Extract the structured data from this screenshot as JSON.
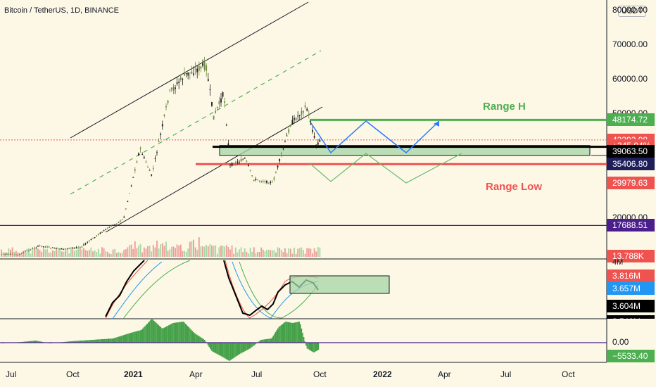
{
  "header": {
    "title": "Bitcoin / TetherUS, 1D, BINANCE",
    "currency": "USDT"
  },
  "price_axis": {
    "ticks": [
      {
        "label": "80000.00",
        "value": 80000
      },
      {
        "label": "70000.00",
        "value": 70000
      },
      {
        "label": "60000.00",
        "value": 60000
      },
      {
        "label": "50000.00",
        "value": 50000
      },
      {
        "label": "20000.00",
        "value": 20000
      }
    ]
  },
  "price_tags": [
    {
      "label": "48174.72",
      "value": 48174.72,
      "color": "#4caf50",
      "text_color": "#ffffff"
    },
    {
      "label": "42392.98",
      "value": 42392.98,
      "color": "#ef5350",
      "text_color": "#ffffff"
    },
    {
      "label": "+345.04%",
      "value": 40800,
      "color": "#ef5350",
      "text_color": "#ffffff"
    },
    {
      "label": "39063.50",
      "value": 39063.5,
      "color": "#000000",
      "text_color": "#ffffff"
    },
    {
      "label": "35406.80",
      "value": 35406.8,
      "color": "#1e1e5a",
      "text_color": "#ffffff"
    },
    {
      "label": "29979.63",
      "value": 29979.63,
      "color": "#ef5350",
      "text_color": "#ffffff"
    },
    {
      "label": "17688.51",
      "value": 17688.51,
      "color": "#4a1e8c",
      "text_color": "#ffffff"
    }
  ],
  "volume": {
    "label": "13.788K",
    "color": "#ef5350"
  },
  "indicator_axis": {
    "tick": "4M",
    "tags": [
      {
        "label": "3.816M",
        "color": "#ef5350",
        "text_color": "#ffffff"
      },
      {
        "label": "3.657M",
        "color": "#2196f3",
        "text_color": "#ffffff"
      },
      {
        "label": "3.604M",
        "color": "#000000",
        "text_color": "#ffffff"
      },
      {
        "label": "3.543M",
        "color": "#000000",
        "text_color": "#ffffff"
      }
    ]
  },
  "oscillator_axis": {
    "tick": "0.00",
    "tag": {
      "label": "−5533.40",
      "color": "#4caf50",
      "text_color": "#ffffff"
    }
  },
  "annotations": {
    "range_high": {
      "text": "Range H",
      "color": "#4caf50"
    },
    "range_low": {
      "text": "Range Low",
      "color": "#ef5350"
    }
  },
  "time_axis": [
    {
      "label": "Jul",
      "bold": false
    },
    {
      "label": "Oct",
      "bold": false
    },
    {
      "label": "2021",
      "bold": true
    },
    {
      "label": "Apr",
      "bold": false
    },
    {
      "label": "Jul",
      "bold": false
    },
    {
      "label": "Oct",
      "bold": false
    },
    {
      "label": "2022",
      "bold": true
    },
    {
      "label": "Apr",
      "bold": false
    },
    {
      "label": "Jul",
      "bold": false
    },
    {
      "label": "Oct",
      "bold": false
    }
  ],
  "chart_data": {
    "type": "candlestick",
    "symbol": "BTCUSDT",
    "interval": "1D",
    "ylim": [
      10000,
      80000
    ],
    "levels": {
      "range_high": 48174.72,
      "range_mid_top": 40800,
      "range_mid_bottom": 37900,
      "black_line": 40400,
      "range_low": 35406.8,
      "lower_support": 17688.51,
      "last_price": 42392.98
    },
    "series": [
      {
        "name": "BTCUSDT",
        "points": [
          [
            "2020-06-15",
            9500
          ],
          [
            "2020-07-15",
            9200
          ],
          [
            "2020-08-15",
            11800
          ],
          [
            "2020-09-15",
            10800
          ],
          [
            "2020-10-15",
            11500
          ],
          [
            "2020-11-15",
            16000
          ],
          [
            "2020-12-15",
            19500
          ],
          [
            "2021-01-08",
            40000
          ],
          [
            "2021-01-25",
            32000
          ],
          [
            "2021-02-20",
            56000
          ],
          [
            "2021-03-14",
            61000
          ],
          [
            "2021-04-14",
            64000
          ],
          [
            "2021-04-25",
            49000
          ],
          [
            "2021-05-10",
            56000
          ],
          [
            "2021-05-19",
            35000
          ],
          [
            "2021-06-10",
            37000
          ],
          [
            "2021-06-22",
            31000
          ],
          [
            "2021-07-20",
            30000
          ],
          [
            "2021-08-15",
            47000
          ],
          [
            "2021-09-07",
            52000
          ],
          [
            "2021-09-21",
            41000
          ],
          [
            "2021-09-28",
            42392.98
          ]
        ]
      }
    ]
  }
}
